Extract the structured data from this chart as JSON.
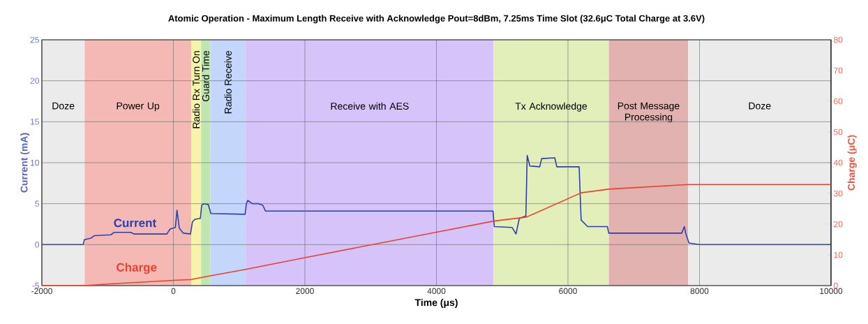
{
  "chart_data": {
    "type": "line",
    "title": "Atomic Operation - Maximum Length Receive with Acknowledge Pout=8dBm, 7.25ms Time Slot (32.6μC Total Charge at 3.6V)",
    "xlabel": "Time (μs)",
    "ylabel": "Current (mA)",
    "y2label": "Charge (μC)",
    "xlim": [
      -2000,
      10000
    ],
    "xticks": [
      -2000,
      0,
      2000,
      4000,
      6000,
      8000,
      10000
    ],
    "ylim": [
      -5,
      25
    ],
    "yticks": [
      -5,
      0,
      5,
      10,
      15,
      20,
      25
    ],
    "y2lim": [
      0,
      80
    ],
    "y2ticks": [
      0,
      10,
      20,
      30,
      40,
      50,
      60,
      70,
      80
    ],
    "grid": true,
    "bands": [
      {
        "axis": "x",
        "from": -2000,
        "to": -1350,
        "label": "Doze",
        "color": "#ebebeb"
      },
      {
        "axis": "x",
        "from": -1350,
        "to": 270,
        "label": "Power Up",
        "color": "#f4b9b4"
      },
      {
        "axis": "x",
        "from": 270,
        "to": 420,
        "label": "Radio Rx Turn On",
        "color": "#f7f3a8"
      },
      {
        "axis": "x",
        "from": 420,
        "to": 560,
        "label": "Guard Time",
        "color": "#bfe6b0"
      },
      {
        "axis": "x",
        "from": 560,
        "to": 1100,
        "label": "Radio Receive",
        "color": "#c4d6fb"
      },
      {
        "axis": "x",
        "from": 1100,
        "to": 4870,
        "label": "Receive with AES",
        "color": "#d5c3fa"
      },
      {
        "axis": "x",
        "from": 4870,
        "to": 6620,
        "label": "Tx Acknowledge",
        "color": "#e3efbb"
      },
      {
        "axis": "x",
        "from": 6620,
        "to": 7830,
        "label": "Post Message Processing",
        "color": "#e2b2b0"
      },
      {
        "axis": "x",
        "from": 7830,
        "to": 10000,
        "label": "Doze",
        "color": "#ebebeb"
      }
    ],
    "series": [
      {
        "name": "Current",
        "color": "#2b3fb0",
        "x": [
          -2000,
          -1370,
          -1355,
          -1250,
          -1200,
          -950,
          -900,
          -650,
          -600,
          -100,
          -50,
          30,
          55,
          90,
          150,
          260,
          290,
          330,
          410,
          430,
          460,
          530,
          570,
          1090,
          1110,
          1130,
          1200,
          1300,
          1360,
          1400,
          4860,
          4880,
          5150,
          5210,
          5260,
          5360,
          5380,
          5420,
          5570,
          5600,
          5800,
          5830,
          6170,
          6200,
          6300,
          6600,
          6620,
          7730,
          7770,
          7790,
          7840,
          8000,
          10000
        ],
        "values": [
          0,
          0,
          0.6,
          0.8,
          1.1,
          1.2,
          1.5,
          1.5,
          1.3,
          1.3,
          1.9,
          2.1,
          4.2,
          2.0,
          1.4,
          1.3,
          2.8,
          3.1,
          3.2,
          4.8,
          5.0,
          4.9,
          3.8,
          3.7,
          5.0,
          5.4,
          5.0,
          5.0,
          4.8,
          4.1,
          4.1,
          2.2,
          2.1,
          1.3,
          3.2,
          3.5,
          10.9,
          9.6,
          9.5,
          10.5,
          10.6,
          9.5,
          9.5,
          3.0,
          2.2,
          2.2,
          1.4,
          1.4,
          2.2,
          1.4,
          0.2,
          0,
          0
        ]
      },
      {
        "name": "Charge",
        "axis": "y2",
        "color": "#e8412c",
        "x": [
          -2000,
          -1350,
          -1000,
          0,
          270,
          560,
          1100,
          2000,
          4000,
          4870,
          5370,
          6200,
          6620,
          7830,
          10000
        ],
        "values": [
          0,
          0,
          0.5,
          1.7,
          2.0,
          3.2,
          5.3,
          9.1,
          17.4,
          21.0,
          22.3,
          30.2,
          31.4,
          32.9,
          32.9
        ]
      }
    ]
  }
}
